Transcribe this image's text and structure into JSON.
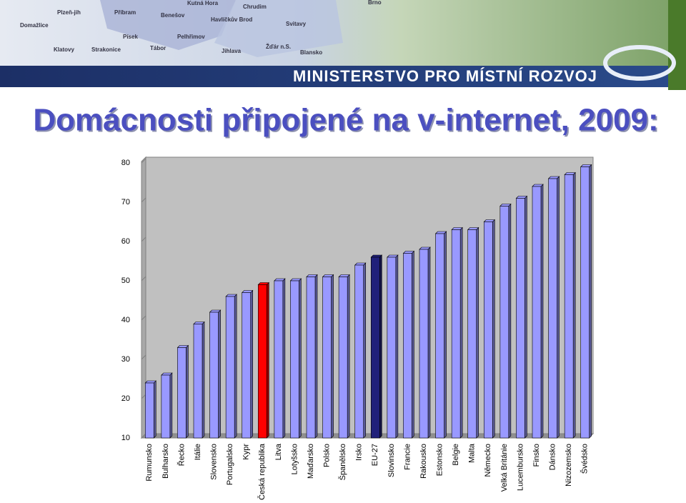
{
  "header": {
    "ministry": "MINISTERSTVO PRO MÍSTNÍ ROZVOJ",
    "map_labels": [
      "Plzeň-jih",
      "Příbram",
      "Benešov",
      "Kutná Hora",
      "Chrudim",
      "Havlíčkův Brod",
      "Svitavy",
      "Domažlice",
      "Písek",
      "Pelhřimov",
      "Klatovy",
      "Strakonice",
      "Tábor",
      "Jihlava",
      "Žďár n.S.",
      "Blansko",
      "Brno"
    ]
  },
  "chart_data": {
    "type": "bar3d",
    "title": "Domácnosti připojené na v-internet, 2009:",
    "categories": [
      "Rumunsko",
      "Bulharsko",
      "Řecko",
      "Itálie",
      "Slovensko",
      "Portugalsko",
      "Kypr",
      "Česká republika",
      "Litva",
      "Lotyšsko",
      "Maďarsko",
      "Polsko",
      "Španělsko",
      "Irsko",
      "EU-27",
      "Slovinsko",
      "Francie",
      "Rakousko",
      "Estonsko",
      "Belgie",
      "Malta",
      "Německo",
      "Velká Británie",
      "Lucembursko",
      "Finsko",
      "Dánsko",
      "Nizozemsko",
      "Švédsko"
    ],
    "values": [
      24,
      26,
      33,
      39,
      42,
      46,
      47,
      49,
      50,
      50,
      51,
      51,
      51,
      54,
      56,
      56,
      57,
      58,
      62,
      63,
      63,
      65,
      69,
      71,
      74,
      76,
      77,
      79
    ],
    "bar_colors": [
      "#9999ff",
      "#9999ff",
      "#9999ff",
      "#9999ff",
      "#9999ff",
      "#9999ff",
      "#9999ff",
      "#ff0000",
      "#9999ff",
      "#9999ff",
      "#9999ff",
      "#9999ff",
      "#9999ff",
      "#9999ff",
      "#20207a",
      "#9999ff",
      "#9999ff",
      "#9999ff",
      "#9999ff",
      "#9999ff",
      "#9999ff",
      "#9999ff",
      "#9999ff",
      "#9999ff",
      "#9999ff",
      "#9999ff",
      "#9999ff",
      "#9999ff"
    ],
    "ylim": [
      10,
      80
    ],
    "yticks": [
      10,
      20,
      30,
      40,
      50,
      60,
      70,
      80
    ]
  }
}
